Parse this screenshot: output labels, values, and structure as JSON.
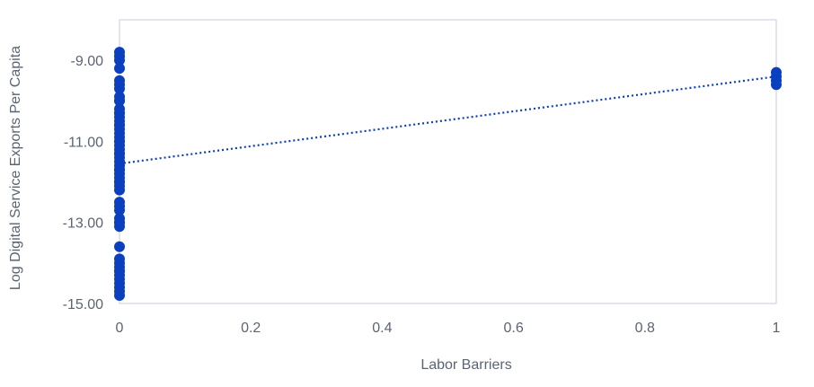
{
  "chart_data": {
    "type": "scatter",
    "title": "",
    "xlabel": "Labor Barriers",
    "ylabel": "Log Digital Service Exports Per Capita",
    "xlim": [
      0,
      1
    ],
    "ylim": [
      -15,
      -8
    ],
    "x_ticks": [
      0,
      0.2,
      0.4,
      0.6,
      0.8,
      1
    ],
    "x_tick_labels": [
      "0",
      "0.2",
      "0.4",
      "0.6",
      "0.8",
      "1"
    ],
    "y_ticks": [
      -9,
      -11,
      -13,
      -15
    ],
    "y_tick_labels": [
      "-9.00",
      "-11.00",
      "-13.00",
      "-15.00"
    ],
    "grid": false,
    "colors": {
      "points": "#0a3fbf",
      "trendline": "#0a3fbf",
      "frame": "#d9dde6",
      "text": "#5b6473"
    },
    "series": [
      {
        "x": [
          0,
          0,
          0,
          0,
          0,
          0,
          0,
          0,
          0,
          0,
          0,
          0,
          0,
          0,
          0,
          0,
          0,
          0,
          0,
          0,
          0,
          0,
          0,
          0,
          0,
          0,
          0,
          0,
          0,
          0,
          0,
          0,
          0,
          0,
          0,
          0,
          0,
          0,
          0,
          0,
          0,
          0,
          0,
          0,
          0,
          0,
          0,
          0,
          0,
          0,
          0,
          0,
          0,
          0,
          0,
          0,
          1,
          1,
          1,
          1
        ],
        "y": [
          -8.8,
          -8.9,
          -9.0,
          -9.2,
          -9.5,
          -9.6,
          -9.7,
          -9.9,
          -10.0,
          -10.2,
          -10.3,
          -10.4,
          -10.5,
          -10.6,
          -10.7,
          -10.8,
          -10.9,
          -11.0,
          -11.1,
          -11.2,
          -11.3,
          -11.4,
          -11.5,
          -11.6,
          -11.7,
          -11.8,
          -11.9,
          -12.0,
          -12.1,
          -12.2,
          -12.5,
          -12.6,
          -12.7,
          -12.9,
          -13.0,
          -13.1,
          -13.6,
          -13.9,
          -14.0,
          -14.1,
          -14.2,
          -14.3,
          -14.4,
          -14.5,
          -14.6,
          -14.7,
          -14.8,
          -10.0,
          -10.3,
          -10.6,
          -11.0,
          -11.3,
          -11.7,
          -12.0,
          -13.0,
          -14.2,
          -9.3,
          -9.4,
          -9.5,
          -9.6
        ]
      }
    ],
    "trendline": {
      "style": "dotted",
      "x": [
        0,
        1
      ],
      "y": [
        -11.55,
        -9.4
      ]
    }
  }
}
